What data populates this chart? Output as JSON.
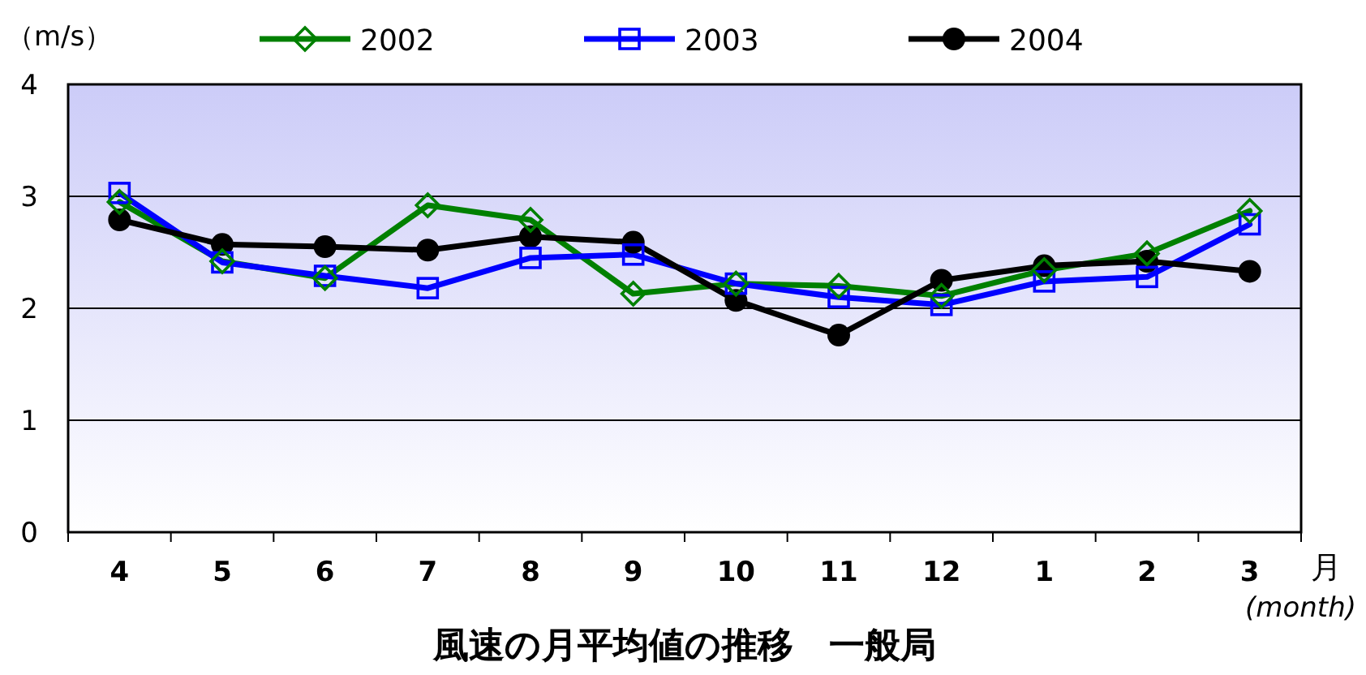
{
  "chart_data": {
    "type": "line",
    "title": "風速の月平均値の推移　一般局",
    "ylabel": "（m/s）",
    "xlabel": "月",
    "annotations": [
      "(month)"
    ],
    "categories": [
      "4",
      "5",
      "6",
      "7",
      "8",
      "9",
      "10",
      "11",
      "12",
      "1",
      "2",
      "3"
    ],
    "ylim": [
      0,
      4
    ],
    "yticks": [
      0,
      1,
      2,
      3,
      4
    ],
    "grid": "y",
    "legend": "top",
    "series": [
      {
        "name": "2002",
        "color": "#008000",
        "marker": "diamond",
        "values": [
          2.95,
          2.42,
          2.27,
          2.92,
          2.79,
          2.13,
          2.22,
          2.2,
          2.11,
          2.34,
          2.49,
          2.87
        ]
      },
      {
        "name": "2003",
        "color": "#0000ff",
        "marker": "square",
        "values": [
          3.03,
          2.41,
          2.29,
          2.18,
          2.45,
          2.48,
          2.22,
          2.1,
          2.03,
          2.24,
          2.28,
          2.75
        ]
      },
      {
        "name": "2004",
        "color": "#000000",
        "marker": "circle",
        "values": [
          2.79,
          2.57,
          2.55,
          2.52,
          2.64,
          2.59,
          2.07,
          1.76,
          2.25,
          2.38,
          2.42,
          2.33
        ]
      }
    ]
  }
}
